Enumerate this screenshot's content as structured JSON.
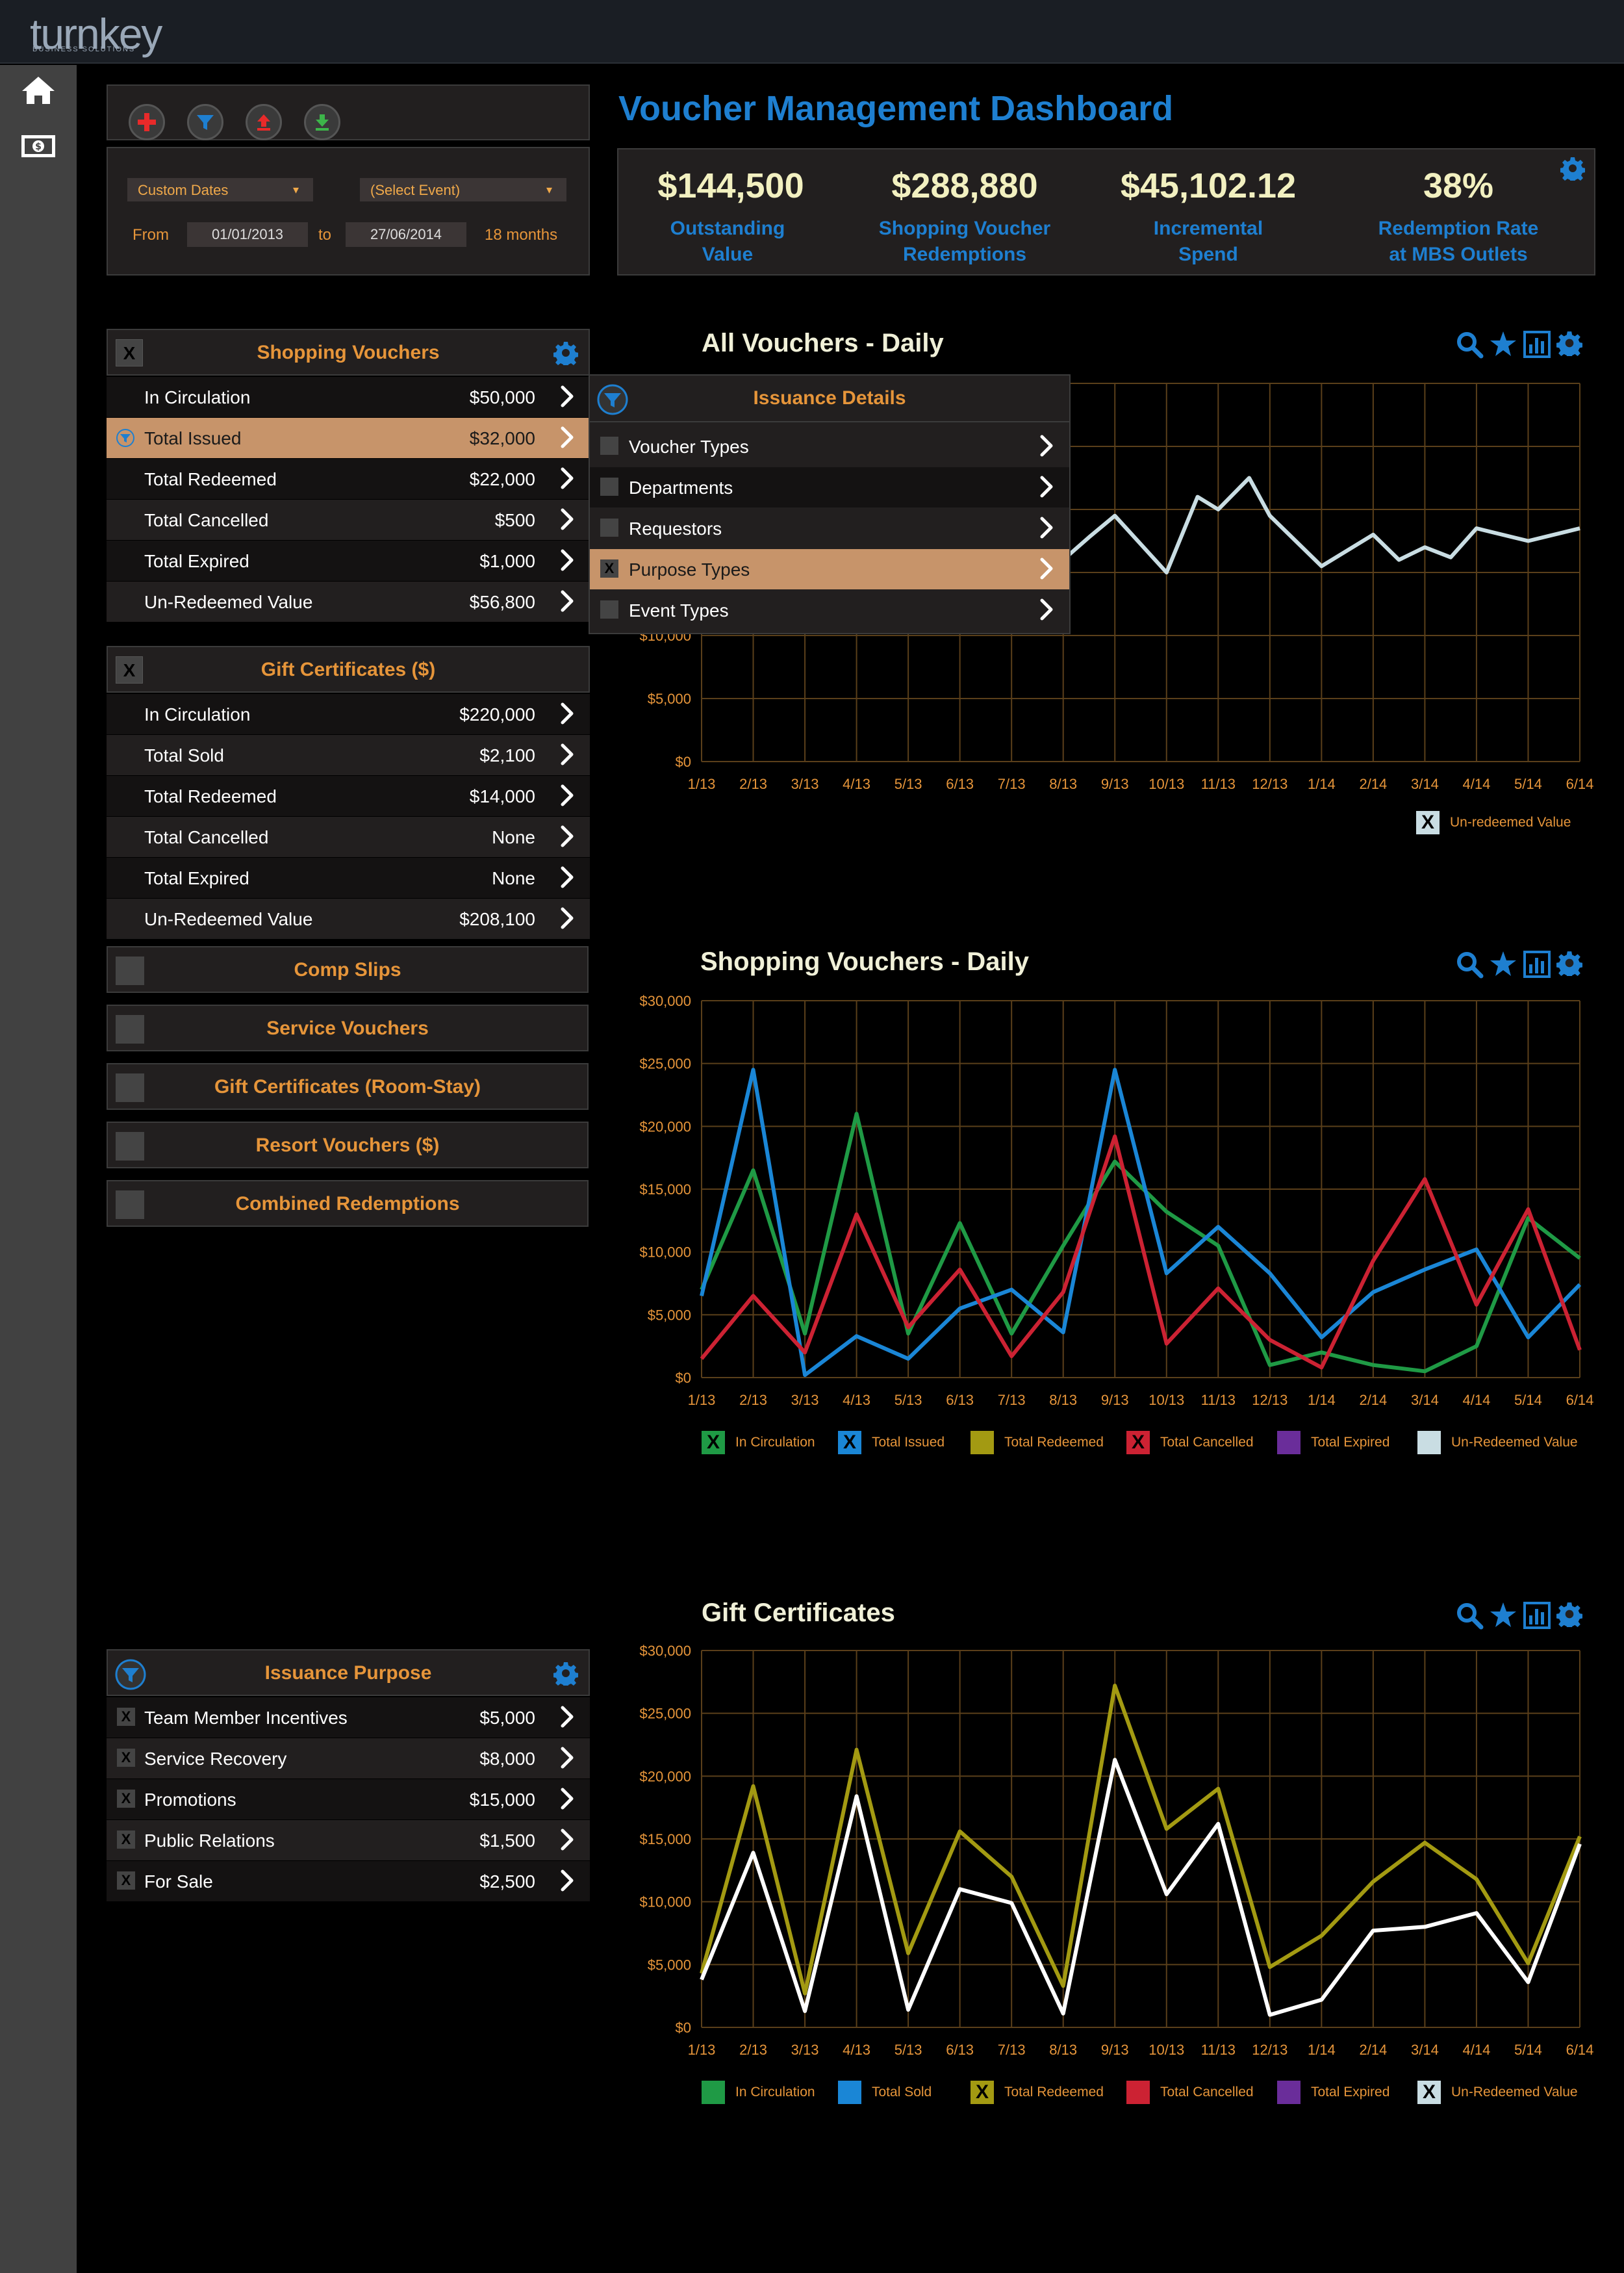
{
  "app": {
    "logo_main": "turnkey",
    "logo_sub": "BUSINESS SOLUTIONS"
  },
  "sidebar": {
    "items": [
      {
        "icon": "home-icon"
      },
      {
        "icon": "money-icon"
      }
    ]
  },
  "toolbar": {
    "buttons": [
      {
        "icon": "add-icon",
        "color": "#e82a2a"
      },
      {
        "icon": "filter-icon",
        "color": "#1e7fd0"
      },
      {
        "icon": "upload-icon",
        "color": "#e82a2a"
      },
      {
        "icon": "download-icon",
        "color": "#3db54a"
      }
    ]
  },
  "filters": {
    "date_mode": "Custom Dates",
    "event": "(Select Event)",
    "from_label": "From",
    "from_date": "01/01/2013",
    "to_label": "to",
    "to_date": "27/06/2014",
    "span": "18 months"
  },
  "dashboard": {
    "title": "Voucher Management Dashboard",
    "kpis": [
      {
        "value": "$144,500",
        "label1": "Outstanding",
        "label2": "Value"
      },
      {
        "value": "$288,880",
        "label1": "Shopping Voucher",
        "label2": "Redemptions"
      },
      {
        "value": "$45,102.12",
        "label1": "Incremental",
        "label2": "Spend"
      },
      {
        "value": "38%",
        "label1": "Redemption Rate",
        "label2": "at MBS Outlets"
      }
    ]
  },
  "shopping_vouchers": {
    "title": "Shopping Vouchers",
    "rows": [
      {
        "label": "In Circulation",
        "value": "$50,000"
      },
      {
        "label": "Total Issued",
        "value": "$32,000",
        "selected": true
      },
      {
        "label": "Total Redeemed",
        "value": "$22,000"
      },
      {
        "label": "Total Cancelled",
        "value": "$500"
      },
      {
        "label": "Total Expired",
        "value": "$1,000"
      },
      {
        "label": "Un-Redeemed Value",
        "value": "$56,800"
      }
    ]
  },
  "gift_certificates": {
    "title": "Gift Certificates ($)",
    "rows": [
      {
        "label": "In Circulation",
        "value": "$220,000"
      },
      {
        "label": "Total Sold",
        "value": "$2,100"
      },
      {
        "label": "Total Redeemed",
        "value": "$14,000"
      },
      {
        "label": "Total Cancelled",
        "value": "None"
      },
      {
        "label": "Total Expired",
        "value": "None"
      },
      {
        "label": "Un-Redeemed Value",
        "value": "$208,100"
      }
    ]
  },
  "collapsed_sections": [
    "Comp Slips",
    "Service Vouchers",
    "Gift Certificates (Room-Stay)",
    "Resort Vouchers ($)",
    "Combined Redemptions"
  ],
  "issuance_details": {
    "title": "Issuance Details",
    "rows": [
      {
        "label": "Voucher Types",
        "checked": false
      },
      {
        "label": "Departments",
        "checked": false
      },
      {
        "label": "Requestors",
        "checked": false
      },
      {
        "label": "Purpose Types",
        "checked": true,
        "selected": true
      },
      {
        "label": "Event Types",
        "checked": false
      }
    ]
  },
  "issuance_purpose": {
    "title": "Issuance Purpose",
    "rows": [
      {
        "label": "Team Member Incentives",
        "value": "$5,000"
      },
      {
        "label": "Service Recovery",
        "value": "$8,000"
      },
      {
        "label": "Promotions",
        "value": "$15,000"
      },
      {
        "label": "Public Relations",
        "value": "$1,500"
      },
      {
        "label": "For Sale",
        "value": "$2,500"
      }
    ]
  },
  "chart_data": [
    {
      "type": "line",
      "title": "All Vouchers - Daily",
      "categories": [
        "1/13",
        "2/13",
        "3/13",
        "4/13",
        "5/13",
        "6/13",
        "7/13",
        "8/13",
        "9/13",
        "10/13",
        "11/13",
        "12/13",
        "1/14",
        "2/14",
        "3/14",
        "4/14",
        "5/14",
        "6/14"
      ],
      "x": [
        1,
        2,
        3,
        4,
        5,
        6,
        7,
        8,
        9,
        10,
        10.5,
        11,
        12,
        13,
        13.5,
        14,
        14.5,
        15,
        15.5,
        16,
        17,
        18
      ],
      "y_ticks": [
        "$0",
        "$5,000",
        "$10,000"
      ],
      "ylim": [
        0,
        30000
      ],
      "series": [
        {
          "name": "Un-redeemed Value",
          "color": "#c9dde3",
          "x": [
            7.6,
            8,
            8.5,
            9,
            10,
            10.6,
            11,
            11.6,
            12,
            13,
            14,
            14.5,
            15,
            15.5,
            16,
            17,
            18
          ],
          "values": [
            13500,
            16000,
            17800,
            19500,
            15000,
            21000,
            20000,
            22500,
            19500,
            15500,
            18000,
            16000,
            17000,
            16200,
            18500,
            17500,
            18500
          ]
        }
      ],
      "legend": [
        {
          "name": "Un-redeemed Value",
          "color": "#c9dde3",
          "checked": true
        }
      ]
    },
    {
      "type": "line",
      "title": "Shopping Vouchers - Daily",
      "categories": [
        "1/13",
        "2/13",
        "3/13",
        "4/13",
        "5/13",
        "6/13",
        "7/13",
        "8/13",
        "9/13",
        "10/13",
        "11/13",
        "12/13",
        "1/14",
        "2/14",
        "3/14",
        "4/14",
        "5/14",
        "6/14"
      ],
      "y_ticks": [
        "$0",
        "$5,000",
        "$10,000",
        "$15,000",
        "$20,000",
        "$25,000",
        "$30,000"
      ],
      "ylim": [
        0,
        30000
      ],
      "series": [
        {
          "name": "In Circulation",
          "color": "#1f9a45",
          "values": [
            7000,
            16500,
            3500,
            21000,
            3500,
            12300,
            3500,
            10500,
            17200,
            13200,
            10500,
            1000,
            2000,
            1000,
            500,
            2500,
            12700,
            9500
          ]
        },
        {
          "name": "Total Issued",
          "color": "#1a86d6",
          "values": [
            6500,
            24500,
            200,
            3300,
            1500,
            5500,
            7000,
            3600,
            24500,
            8300,
            12000,
            8300,
            3200,
            6800,
            8600,
            10200,
            3200,
            7400
          ]
        },
        {
          "name": "Total Cancelled",
          "color": "#cc2233",
          "values": [
            1500,
            6500,
            2000,
            13000,
            4000,
            8600,
            1700,
            6800,
            19200,
            2700,
            7100,
            3000,
            800,
            9300,
            15800,
            5800,
            13400,
            2200
          ]
        }
      ],
      "legend": [
        {
          "name": "In Circulation",
          "color": "#1f9a45",
          "checked": true
        },
        {
          "name": "Total Issued",
          "color": "#1a86d6",
          "checked": true
        },
        {
          "name": "Total Redeemed",
          "color": "#a39a12",
          "checked": false
        },
        {
          "name": "Total Cancelled",
          "color": "#cc2233",
          "checked": true
        },
        {
          "name": "Total Expired",
          "color": "#6a2d9a",
          "checked": false
        },
        {
          "name": "Un-Redeemed Value",
          "color": "#c9dde3",
          "checked": false
        }
      ]
    },
    {
      "type": "line",
      "title": "Gift Certificates",
      "categories": [
        "1/13",
        "2/13",
        "3/13",
        "4/13",
        "5/13",
        "6/13",
        "7/13",
        "8/13",
        "9/13",
        "10/13",
        "11/13",
        "12/13",
        "1/14",
        "2/14",
        "3/14",
        "4/14",
        "5/14",
        "6/14"
      ],
      "y_ticks": [
        "$0",
        "$5,000",
        "$10,000",
        "$15,000",
        "$20,000",
        "$25,000",
        "$30,000"
      ],
      "ylim": [
        0,
        30000
      ],
      "series": [
        {
          "name": "Total Redeemed",
          "color": "#a39a12",
          "values": [
            4300,
            19200,
            2700,
            22100,
            5900,
            15600,
            12000,
            3300,
            27200,
            15800,
            19000,
            4800,
            7300,
            11600,
            14700,
            11800,
            5100,
            15200
          ]
        },
        {
          "name": "Un-Redeemed Value",
          "color": "#ffffff",
          "values": [
            3800,
            13900,
            1300,
            18400,
            1400,
            11000,
            9900,
            1100,
            21300,
            10600,
            16200,
            1000,
            2200,
            7700,
            8000,
            9100,
            3600,
            14600
          ]
        }
      ],
      "legend": [
        {
          "name": "In Circulation",
          "color": "#1f9a45",
          "checked": false
        },
        {
          "name": "Total Sold",
          "color": "#1a86d6",
          "checked": false
        },
        {
          "name": "Total Redeemed",
          "color": "#a39a12",
          "checked": true
        },
        {
          "name": "Total Cancelled",
          "color": "#cc2233",
          "checked": false
        },
        {
          "name": "Total Expired",
          "color": "#6a2d9a",
          "checked": false
        },
        {
          "name": "Un-Redeemed Value",
          "color": "#c9dde3",
          "checked": true
        }
      ]
    }
  ]
}
